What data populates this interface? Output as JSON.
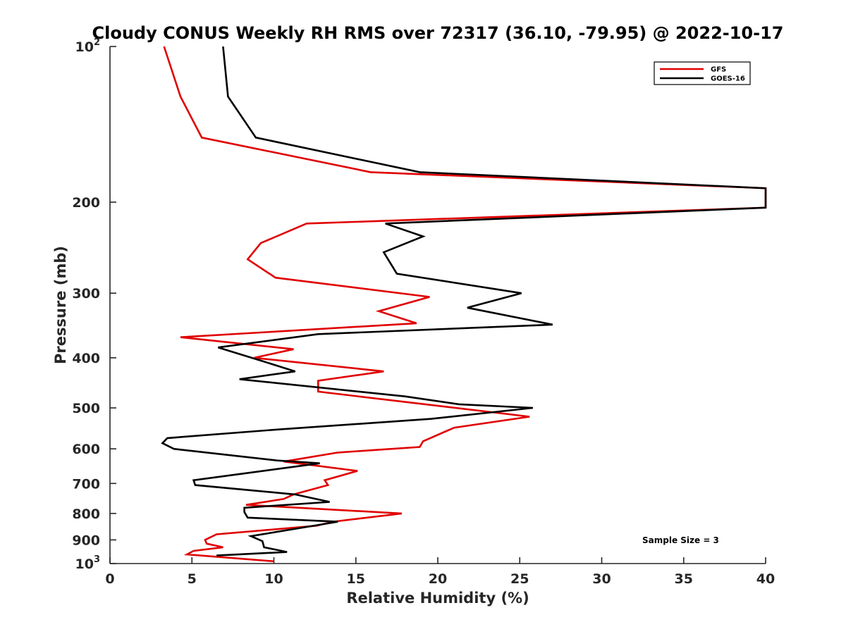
{
  "chart_data": {
    "type": "line",
    "title": "Cloudy CONUS Weekly RH RMS over 72317 (36.10, -79.95) @ 2022-10-17",
    "xlabel": "Relative Humidity (%)",
    "ylabel": "Pressure (mb)",
    "xlim": [
      0,
      40
    ],
    "ylim": [
      100,
      1000
    ],
    "y_scale": "log",
    "y_reversed": true,
    "grid": false,
    "x_ticks": [
      "0",
      "5",
      "10",
      "15",
      "20",
      "25",
      "30",
      "35",
      "40"
    ],
    "y_ticks": [
      {
        "value": 100,
        "base": "10",
        "exp": "2"
      },
      {
        "value": 200,
        "label": "200"
      },
      {
        "value": 300,
        "label": "300"
      },
      {
        "value": 400,
        "label": "400"
      },
      {
        "value": 500,
        "label": "500"
      },
      {
        "value": 600,
        "label": "600"
      },
      {
        "value": 700,
        "label": "700"
      },
      {
        "value": 800,
        "label": "800"
      },
      {
        "value": 900,
        "label": "900"
      },
      {
        "value": 1000,
        "base": "10",
        "exp": "3"
      }
    ],
    "legend_position": "top-right",
    "annotation": "Sample Size = 3",
    "series": [
      {
        "name": "GFS",
        "color": "#e00000",
        "points": [
          [
            3.3,
            100
          ],
          [
            4.3,
            125
          ],
          [
            5.6,
            150
          ],
          [
            15.9,
            175
          ],
          [
            40,
            188
          ],
          [
            40,
            205
          ],
          [
            12,
            220
          ],
          [
            9.2,
            240
          ],
          [
            8.4,
            258
          ],
          [
            10.1,
            280
          ],
          [
            19.5,
            305
          ],
          [
            16.4,
            325
          ],
          [
            18.7,
            343
          ],
          [
            4.3,
            365
          ],
          [
            11.2,
            385
          ],
          [
            8.8,
            400
          ],
          [
            16.7,
            425
          ],
          [
            12.7,
            443
          ],
          [
            12.7,
            465
          ],
          [
            25.6,
            520
          ],
          [
            21,
            546
          ],
          [
            19.1,
            580
          ],
          [
            18.9,
            595
          ],
          [
            13.9,
            610
          ],
          [
            10.6,
            635
          ],
          [
            15.1,
            662
          ],
          [
            13.1,
            690
          ],
          [
            13.3,
            705
          ],
          [
            11.2,
            735
          ],
          [
            10.6,
            750
          ],
          [
            8.3,
            770
          ],
          [
            17.8,
            800
          ],
          [
            13.6,
            830
          ],
          [
            12.6,
            845
          ],
          [
            6.5,
            878
          ],
          [
            5.8,
            900
          ],
          [
            5.9,
            915
          ],
          [
            6.9,
            930
          ],
          [
            5.1,
            945
          ],
          [
            4.7,
            960
          ],
          [
            10,
            990
          ]
        ]
      },
      {
        "name": "GOES-16",
        "color": "#000000",
        "points": [
          [
            6.9,
            100
          ],
          [
            7.2,
            125
          ],
          [
            8.9,
            150
          ],
          [
            18.9,
            175
          ],
          [
            40,
            188
          ],
          [
            40,
            205
          ],
          [
            16.8,
            220
          ],
          [
            19.1,
            233
          ],
          [
            16.7,
            250
          ],
          [
            17.5,
            275
          ],
          [
            25.1,
            300
          ],
          [
            21.8,
            320
          ],
          [
            27,
            345
          ],
          [
            12.7,
            360
          ],
          [
            6.6,
            382
          ],
          [
            9.2,
            405
          ],
          [
            11.3,
            425
          ],
          [
            7.9,
            440
          ],
          [
            18,
            475
          ],
          [
            21.3,
            492
          ],
          [
            25.8,
            500
          ],
          [
            19.6,
            525
          ],
          [
            10.4,
            550
          ],
          [
            3.5,
            572
          ],
          [
            3.2,
            585
          ],
          [
            3.9,
            600
          ],
          [
            10.2,
            632
          ],
          [
            12.8,
            640
          ],
          [
            5.1,
            690
          ],
          [
            5.2,
            705
          ],
          [
            11.3,
            735
          ],
          [
            13.4,
            760
          ],
          [
            8.2,
            780
          ],
          [
            8.2,
            795
          ],
          [
            8.4,
            815
          ],
          [
            13.9,
            830
          ],
          [
            8.6,
            885
          ],
          [
            9.3,
            905
          ],
          [
            9.4,
            930
          ],
          [
            10.8,
            950
          ],
          [
            6.5,
            965
          ]
        ]
      }
    ]
  }
}
